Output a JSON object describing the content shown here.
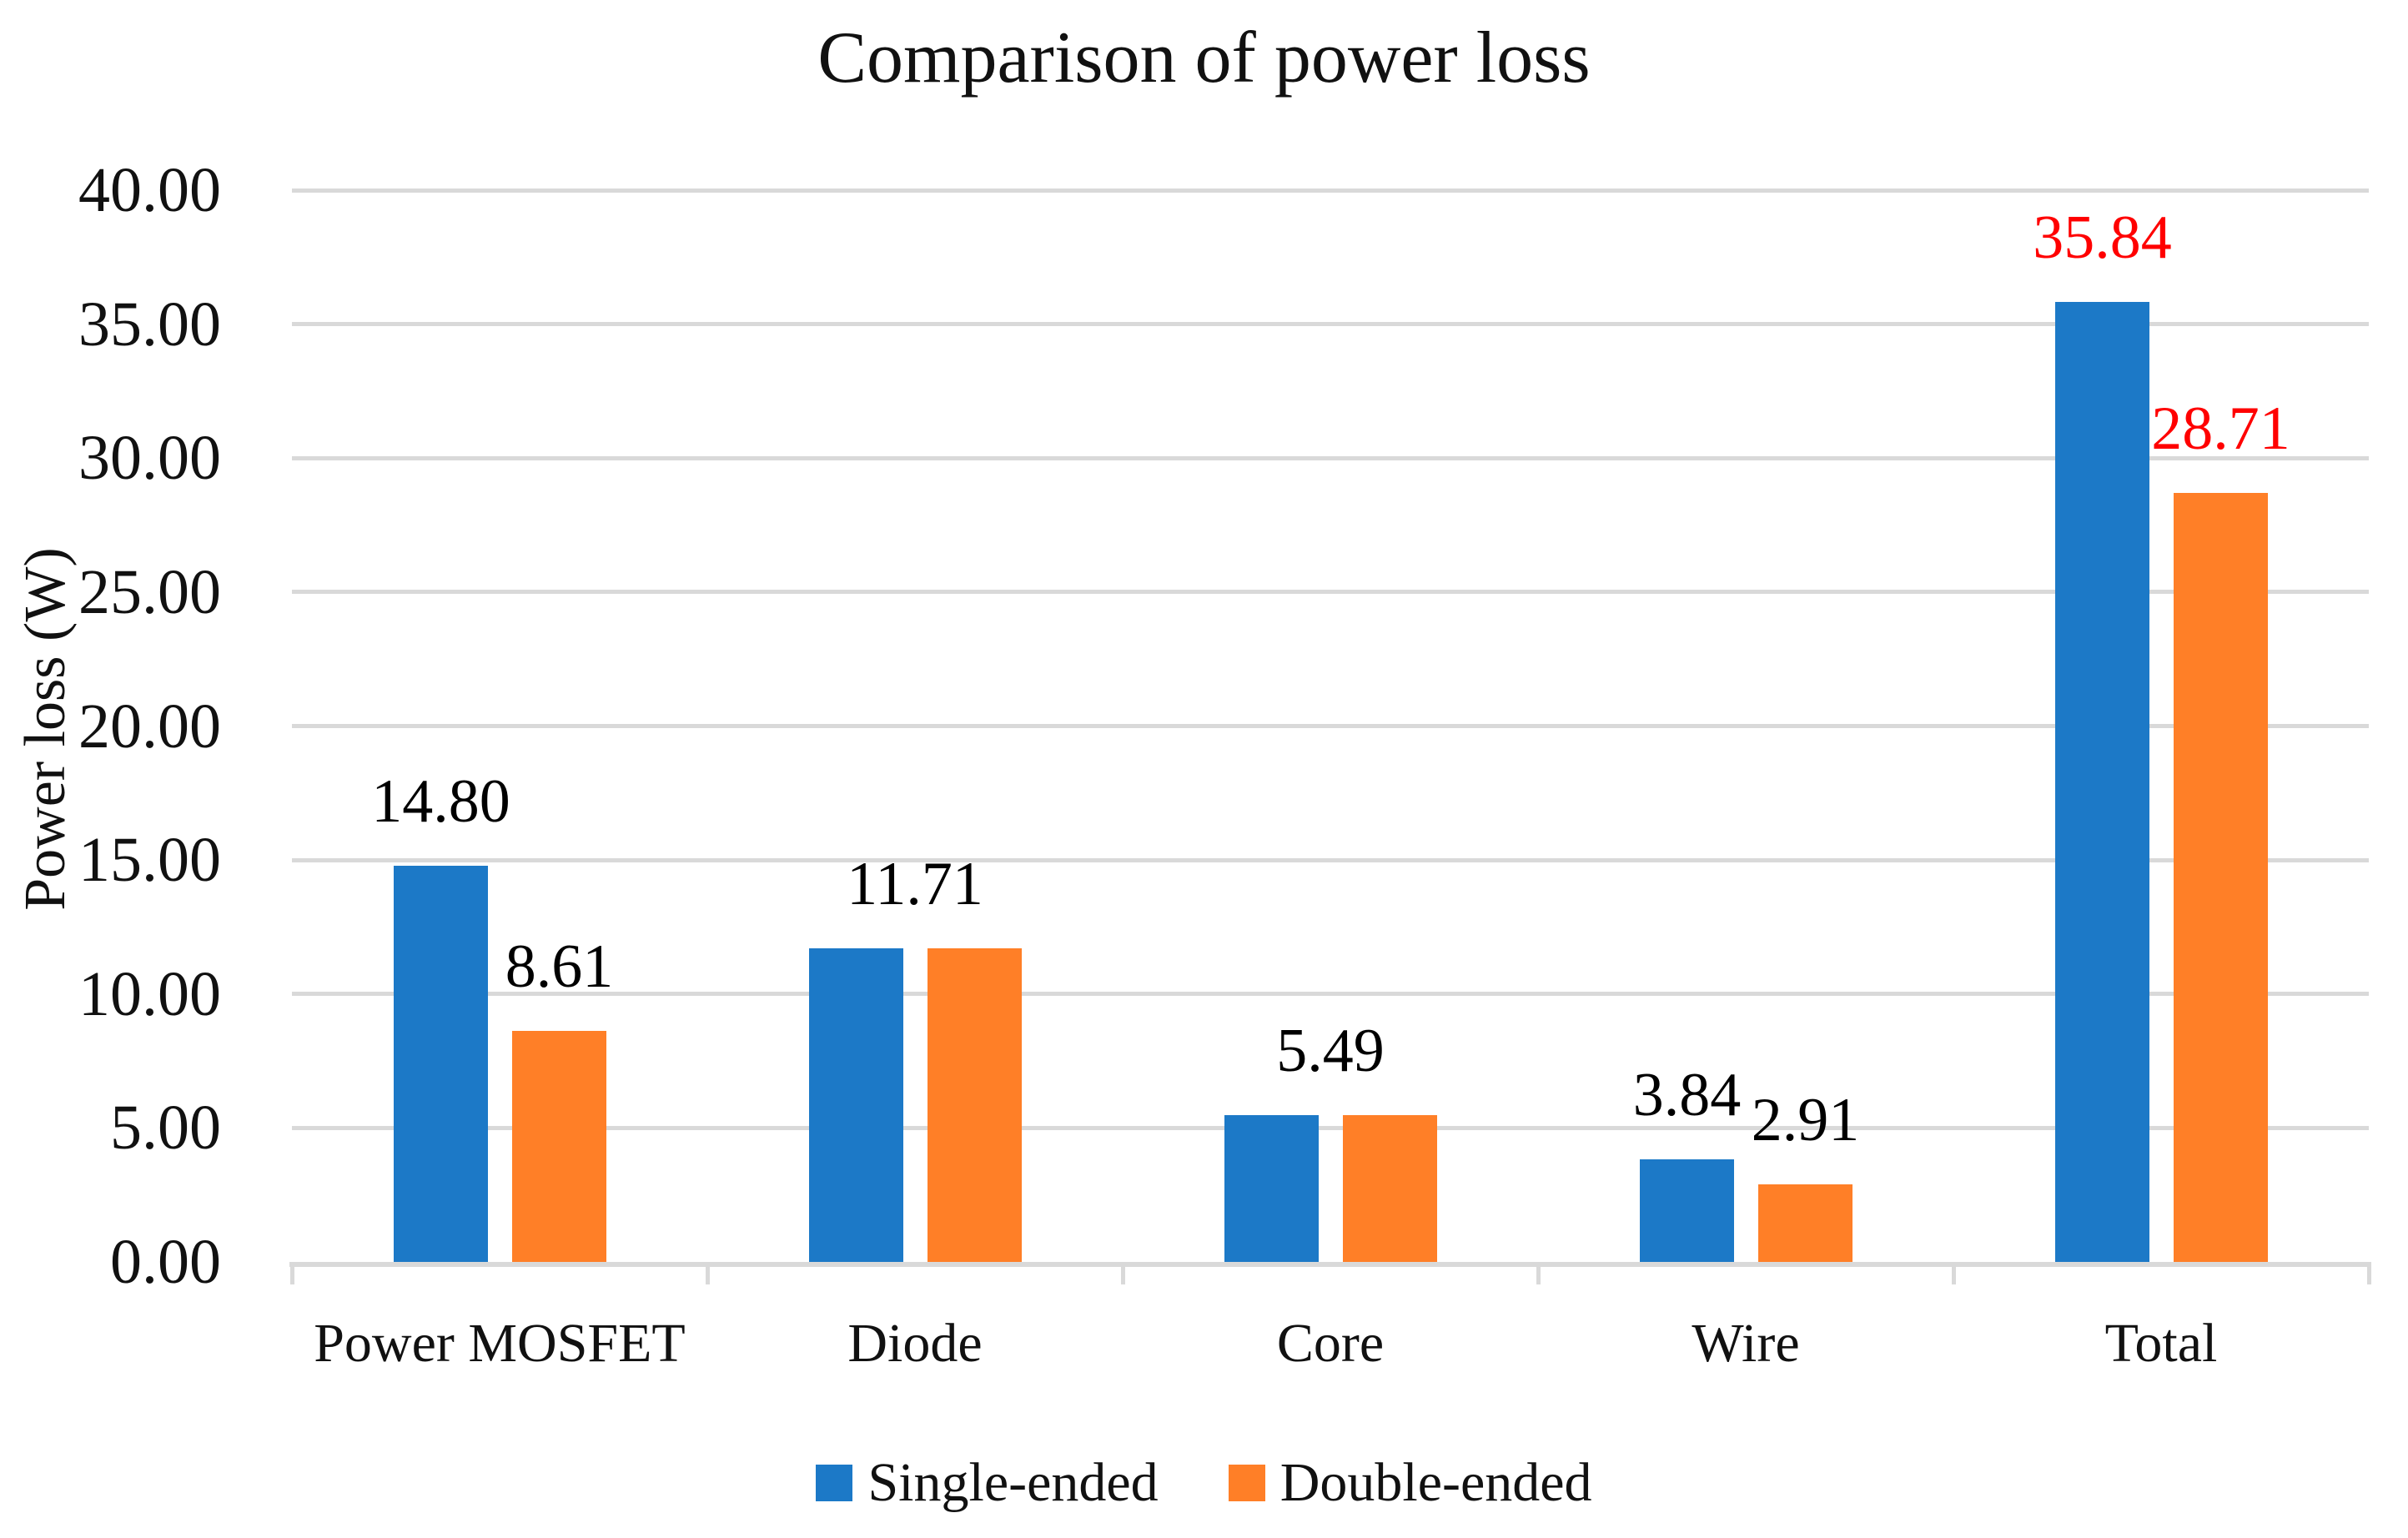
{
  "title": "Comparison of power loss",
  "colors": {
    "single_ended": "#1C79C7",
    "double_ended": "#FF7F27",
    "highlight_label": "#FF0000",
    "default_label": "#000000",
    "gridline": "#D9D9D9",
    "axis_line": "#D9D9D9",
    "text": "#000000"
  },
  "chart_data": {
    "type": "bar",
    "title": "Comparison of power loss",
    "ylabel": "Power loss (W)",
    "ylim": [
      0,
      40
    ],
    "ytick_step": 5,
    "ytick_labels": [
      "0.00",
      "5.00",
      "10.00",
      "15.00",
      "20.00",
      "25.00",
      "30.00",
      "35.00",
      "40.00"
    ],
    "grid": true,
    "legend_position": "bottom",
    "categories": [
      "Power MOSFET",
      "Diode",
      "Core",
      "Wire",
      "Total"
    ],
    "series": [
      {
        "name": "Single-ended",
        "color": "#1C79C7",
        "points": [
          {
            "value": 14.8,
            "label": "14.80",
            "label_color": "#000000",
            "label_align": "bar"
          },
          {
            "value": 11.71,
            "label": "11.71",
            "label_color": "#000000",
            "label_align": "category"
          },
          {
            "value": 5.49,
            "label": "5.49",
            "label_color": "#000000",
            "label_align": "category"
          },
          {
            "value": 3.84,
            "label": "3.84",
            "label_color": "#000000",
            "label_align": "bar"
          },
          {
            "value": 35.84,
            "label": "35.84",
            "label_color": "#FF0000",
            "label_align": "bar"
          }
        ]
      },
      {
        "name": "Double-ended",
        "color": "#FF7F27",
        "points": [
          {
            "value": 8.61,
            "label": "8.61",
            "label_color": "#000000",
            "label_align": "bar"
          },
          {
            "value": 11.71,
            "label": null,
            "label_color": null,
            "label_align": null
          },
          {
            "value": 5.49,
            "label": null,
            "label_color": null,
            "label_align": null
          },
          {
            "value": 2.91,
            "label": "2.91",
            "label_color": "#000000",
            "label_align": "bar"
          },
          {
            "value": 28.71,
            "label": "28.71",
            "label_color": "#FF0000",
            "label_align": "bar"
          }
        ]
      }
    ]
  }
}
